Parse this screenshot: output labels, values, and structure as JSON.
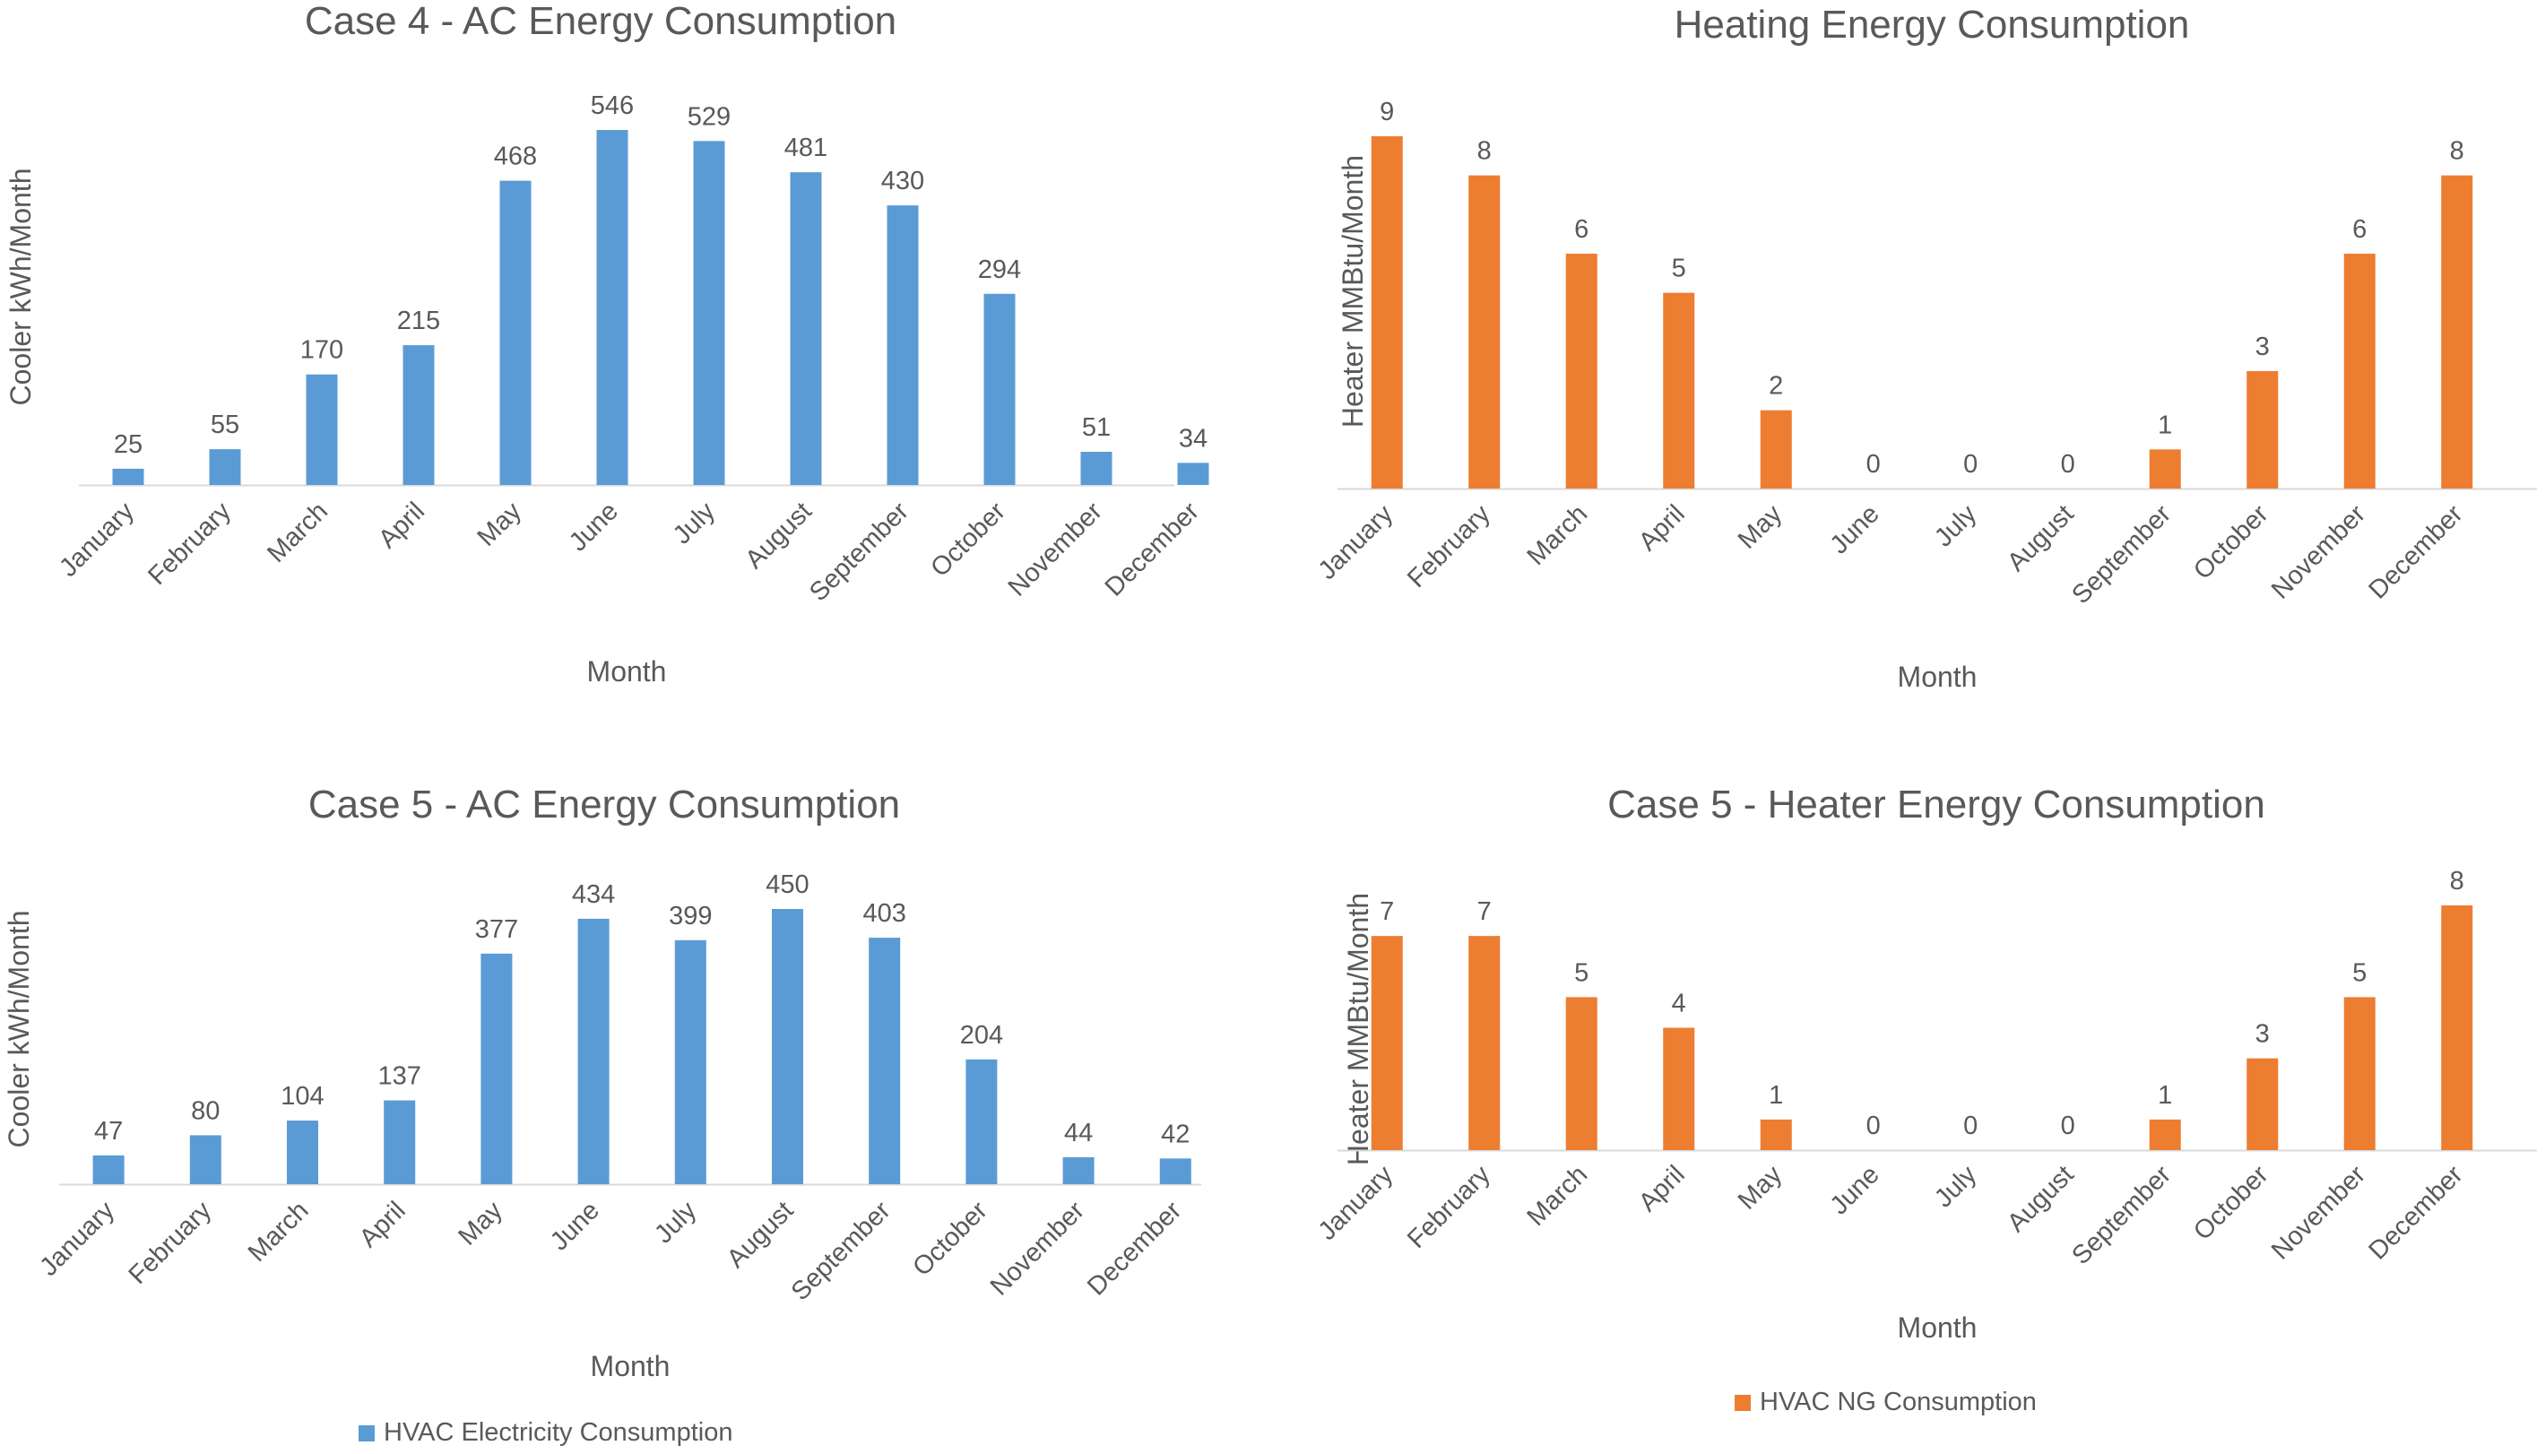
{
  "colors": {
    "ac": "#5b9bd5",
    "heat": "#ed7d31",
    "text": "#595959",
    "axis": "#d9d9d9"
  },
  "legend": {
    "electric_label": "HVAC Electricity Consumption",
    "ng_label": "HVAC NG Consumption"
  },
  "chart_data": [
    {
      "type": "bar",
      "title": "Case 4 - AC Energy Consumption",
      "xlabel": "Month",
      "ylabel": "Cooler kWh/Month",
      "categories": [
        "January",
        "February",
        "March",
        "April",
        "May",
        "June",
        "July",
        "August",
        "September",
        "October",
        "November",
        "December"
      ],
      "values": [
        25,
        55,
        170,
        215,
        468,
        546,
        529,
        481,
        430,
        294,
        51,
        34
      ],
      "ylim": [
        0,
        546
      ],
      "series_name": "HVAC Electricity Consumption"
    },
    {
      "type": "bar",
      "title": "Heating Energy Consumption",
      "xlabel": "Month",
      "ylabel": "Heater MMBtu/Month",
      "categories": [
        "January",
        "February",
        "March",
        "April",
        "May",
        "June",
        "July",
        "August",
        "September",
        "October",
        "November",
        "December"
      ],
      "values": [
        9,
        8,
        6,
        5,
        2,
        0,
        0,
        0,
        1,
        3,
        6,
        8
      ],
      "ylim": [
        0,
        9
      ],
      "series_name": "HVAC NG Consumption"
    },
    {
      "type": "bar",
      "title": "Case 5 - AC Energy Consumption",
      "xlabel": "Month",
      "ylabel": "Cooler kWh/Month",
      "categories": [
        "January",
        "February",
        "March",
        "April",
        "May",
        "June",
        "July",
        "August",
        "September",
        "October",
        "November",
        "December"
      ],
      "values": [
        47,
        80,
        104,
        137,
        377,
        434,
        399,
        450,
        403,
        204,
        44,
        42
      ],
      "ylim": [
        0,
        450
      ],
      "series_name": "HVAC Electricity Consumption"
    },
    {
      "type": "bar",
      "title": "Case 5 - Heater Energy Consumption",
      "xlabel": "Month",
      "ylabel": "Heater MMBtu/Month",
      "categories": [
        "January",
        "February",
        "March",
        "April",
        "May",
        "June",
        "July",
        "August",
        "September",
        "October",
        "November",
        "December"
      ],
      "values": [
        7,
        7,
        5,
        4,
        1,
        0,
        0,
        0,
        1,
        3,
        5,
        8
      ],
      "ylim": [
        0,
        8
      ],
      "series_name": "HVAC NG Consumption"
    }
  ]
}
